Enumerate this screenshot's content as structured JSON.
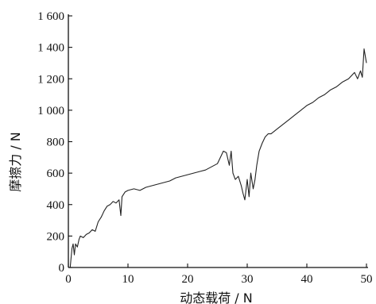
{
  "chart_data": {
    "type": "line",
    "title": "",
    "xlabel": "动态载荷 / N",
    "ylabel": "摩擦力 / N",
    "xlim": [
      0,
      50
    ],
    "ylim": [
      0,
      1600
    ],
    "xticks": [
      0,
      10,
      20,
      30,
      40,
      50
    ],
    "yticks": [
      0,
      200,
      400,
      600,
      800,
      1000,
      1200,
      1400,
      1600
    ],
    "xtick_labels": [
      "0",
      "10",
      "20",
      "30",
      "40",
      "50"
    ],
    "ytick_labels": [
      "0",
      "200",
      "400",
      "600",
      "800",
      "1 000",
      "1 200",
      "1 400",
      "1 600"
    ],
    "grid": false,
    "series": [
      {
        "color": "#222222",
        "x": [
          0.3,
          0.6,
          0.8,
          1.0,
          1.2,
          1.5,
          1.8,
          2.0,
          2.5,
          3.0,
          3.5,
          4.0,
          4.5,
          5.0,
          5.5,
          6.0,
          6.5,
          7.0,
          7.5,
          8.0,
          8.5,
          8.8,
          9.0,
          9.5,
          10.0,
          11.0,
          12.0,
          13.0,
          14.0,
          15.0,
          16.0,
          17.0,
          18.0,
          19.0,
          20.0,
          21.0,
          22.0,
          23.0,
          24.0,
          25.0,
          25.5,
          26.0,
          26.5,
          27.0,
          27.3,
          27.6,
          28.0,
          28.5,
          29.0,
          29.3,
          29.6,
          30.0,
          30.3,
          30.6,
          31.0,
          31.3,
          31.6,
          32.0,
          32.5,
          33.0,
          33.5,
          34.0,
          35.0,
          36.0,
          37.0,
          38.0,
          39.0,
          40.0,
          41.0,
          42.0,
          43.0,
          44.0,
          45.0,
          46.0,
          47.0,
          48.0,
          48.5,
          49.0,
          49.3,
          49.6,
          50.0
        ],
        "values": [
          0,
          120,
          150,
          80,
          150,
          130,
          180,
          200,
          190,
          210,
          220,
          240,
          230,
          290,
          320,
          360,
          390,
          400,
          420,
          410,
          430,
          330,
          450,
          480,
          490,
          500,
          490,
          510,
          520,
          530,
          540,
          550,
          570,
          580,
          590,
          600,
          610,
          620,
          640,
          660,
          700,
          740,
          730,
          650,
          740,
          600,
          560,
          580,
          520,
          470,
          430,
          560,
          450,
          600,
          500,
          560,
          650,
          740,
          790,
          830,
          850,
          850,
          880,
          910,
          940,
          970,
          1000,
          1030,
          1050,
          1080,
          1100,
          1130,
          1150,
          1180,
          1200,
          1240,
          1200,
          1250,
          1210,
          1390,
          1300
        ]
      }
    ]
  }
}
